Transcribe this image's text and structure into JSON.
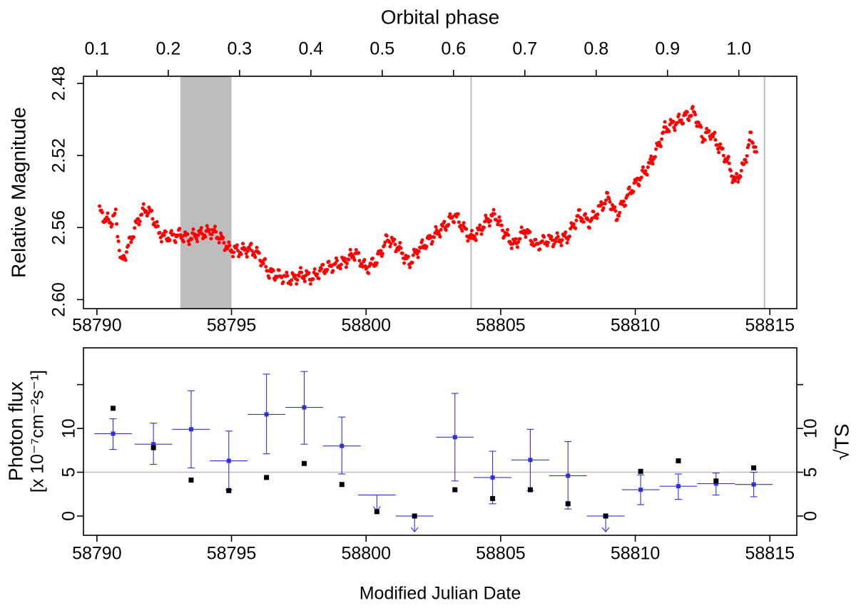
{
  "chart_data": [
    {
      "type": "scatter",
      "top_axis_label": "Orbital phase",
      "top_ticks": [
        "0.1",
        "0.2",
        "0.3",
        "0.4",
        "0.5",
        "0.6",
        "0.7",
        "0.8",
        "0.9",
        "1.0"
      ],
      "ylabel": "Relative Magnitude",
      "y_ticks": [
        "2.48",
        "2.52",
        "2.56",
        "2.60"
      ],
      "ylim": [
        2.476,
        2.605
      ],
      "y_inverted": true,
      "x_ticks": [
        "58790",
        "58795",
        "58800",
        "58805",
        "58810",
        "58815"
      ],
      "xlim": [
        58789.5,
        58816.0
      ],
      "phase_at_58790": 0.1,
      "phase_period_days": 26.496,
      "point_color": "#ff0000",
      "shaded_band": {
        "x0": 58793.1,
        "x1": 58795.0,
        "color": "#bdbdbd"
      },
      "vertical_lines": [
        58803.9,
        58814.8
      ],
      "vertical_line_color": "#bdbdbd",
      "light_curve_points": [
        {
          "x": 58790.1,
          "y": 2.551
        },
        {
          "x": 58790.3,
          "y": 2.555
        },
        {
          "x": 58790.5,
          "y": 2.557
        },
        {
          "x": 58790.7,
          "y": 2.553
        },
        {
          "x": 58790.9,
          "y": 2.58
        },
        {
          "x": 58791.1,
          "y": 2.573
        },
        {
          "x": 58791.3,
          "y": 2.565
        },
        {
          "x": 58791.5,
          "y": 2.557
        },
        {
          "x": 58791.7,
          "y": 2.551
        },
        {
          "x": 58791.9,
          "y": 2.55
        },
        {
          "x": 58792.1,
          "y": 2.555
        },
        {
          "x": 58792.3,
          "y": 2.563
        },
        {
          "x": 58792.5,
          "y": 2.565
        },
        {
          "x": 58792.8,
          "y": 2.565
        },
        {
          "x": 58793.1,
          "y": 2.564
        },
        {
          "x": 58793.4,
          "y": 2.566
        },
        {
          "x": 58793.7,
          "y": 2.564
        },
        {
          "x": 58794.0,
          "y": 2.563
        },
        {
          "x": 58794.3,
          "y": 2.562
        },
        {
          "x": 58794.6,
          "y": 2.566
        },
        {
          "x": 58794.9,
          "y": 2.572
        },
        {
          "x": 58795.3,
          "y": 2.573
        },
        {
          "x": 58795.7,
          "y": 2.572
        },
        {
          "x": 58796.0,
          "y": 2.575
        },
        {
          "x": 58796.4,
          "y": 2.585
        },
        {
          "x": 58796.8,
          "y": 2.587
        },
        {
          "x": 58797.2,
          "y": 2.589
        },
        {
          "x": 58797.6,
          "y": 2.586
        },
        {
          "x": 58798.0,
          "y": 2.588
        },
        {
          "x": 58798.4,
          "y": 2.583
        },
        {
          "x": 58798.8,
          "y": 2.581
        },
        {
          "x": 58799.2,
          "y": 2.579
        },
        {
          "x": 58799.6,
          "y": 2.574
        },
        {
          "x": 58800.0,
          "y": 2.583
        },
        {
          "x": 58800.4,
          "y": 2.578
        },
        {
          "x": 58800.8,
          "y": 2.566
        },
        {
          "x": 58801.2,
          "y": 2.571
        },
        {
          "x": 58801.6,
          "y": 2.58
        },
        {
          "x": 58801.9,
          "y": 2.573
        },
        {
          "x": 58803.0,
          "y": 2.558
        },
        {
          "x": 58803.3,
          "y": 2.553
        },
        {
          "x": 58803.6,
          "y": 2.56
        },
        {
          "x": 58803.9,
          "y": 2.566
        },
        {
          "x": 58804.2,
          "y": 2.562
        },
        {
          "x": 58804.5,
          "y": 2.556
        },
        {
          "x": 58804.8,
          "y": 2.553
        },
        {
          "x": 58805.1,
          "y": 2.562
        },
        {
          "x": 58805.5,
          "y": 2.57
        },
        {
          "x": 58805.9,
          "y": 2.561
        },
        {
          "x": 58806.3,
          "y": 2.57
        },
        {
          "x": 58806.7,
          "y": 2.567
        },
        {
          "x": 58807.1,
          "y": 2.567
        },
        {
          "x": 58807.5,
          "y": 2.565
        },
        {
          "x": 58807.9,
          "y": 2.553
        },
        {
          "x": 58808.3,
          "y": 2.557
        },
        {
          "x": 58808.7,
          "y": 2.549
        },
        {
          "x": 58809.0,
          "y": 2.543
        },
        {
          "x": 58809.3,
          "y": 2.554
        },
        {
          "x": 58809.6,
          "y": 2.545
        },
        {
          "x": 58809.9,
          "y": 2.538
        },
        {
          "x": 58810.2,
          "y": 2.532
        },
        {
          "x": 58810.5,
          "y": 2.526
        },
        {
          "x": 58810.8,
          "y": 2.517
        },
        {
          "x": 58811.1,
          "y": 2.505
        },
        {
          "x": 58811.5,
          "y": 2.502
        },
        {
          "x": 58811.9,
          "y": 2.498
        },
        {
          "x": 58812.2,
          "y": 2.496
        },
        {
          "x": 58812.5,
          "y": 2.51
        },
        {
          "x": 58812.8,
          "y": 2.507
        },
        {
          "x": 58813.1,
          "y": 2.515
        },
        {
          "x": 58813.4,
          "y": 2.522
        },
        {
          "x": 58813.7,
          "y": 2.535
        },
        {
          "x": 58814.0,
          "y": 2.527
        },
        {
          "x": 58814.3,
          "y": 2.509
        },
        {
          "x": 58814.5,
          "y": 2.518
        }
      ]
    },
    {
      "type": "scatter",
      "xlabel": "Modified Julian Date",
      "ylabel_line1": "Photon flux",
      "ylabel_line2": "[x 10⁻⁷cm⁻²s⁻¹]",
      "right_ylabel": "√TS",
      "y_ticks": [
        "0",
        "5",
        "10"
      ],
      "right_ticks": [
        "0",
        "5",
        "10"
      ],
      "ylim": [
        -2.2,
        19.2
      ],
      "x_ticks": [
        "58790",
        "58795",
        "58800",
        "58805",
        "58810",
        "58815"
      ],
      "xlim": [
        58789.5,
        58816.0
      ],
      "reference_line_y": 5,
      "flux_color": "#3030e0",
      "ts_color": "#000000",
      "flux_series": [
        {
          "x": 58790.6,
          "y": 9.4,
          "xerr": 0.7,
          "ylo": 7.6,
          "yhi": 11.1
        },
        {
          "x": 58792.1,
          "y": 8.2,
          "xerr": 0.7,
          "ylo": 5.9,
          "yhi": 10.6
        },
        {
          "x": 58793.5,
          "y": 9.9,
          "xerr": 0.7,
          "ylo": 5.5,
          "yhi": 14.3
        },
        {
          "x": 58794.9,
          "y": 6.3,
          "xerr": 0.7,
          "ylo": 3.0,
          "yhi": 9.7
        },
        {
          "x": 58796.3,
          "y": 11.6,
          "xerr": 0.7,
          "ylo": 7.1,
          "yhi": 16.2
        },
        {
          "x": 58797.7,
          "y": 12.4,
          "xerr": 0.7,
          "ylo": 8.2,
          "yhi": 16.5
        },
        {
          "x": 58799.1,
          "y": 8.0,
          "xerr": 0.7,
          "ylo": 4.8,
          "yhi": 11.3
        },
        {
          "x": 58800.4,
          "y": 2.4,
          "xerr": 0.7,
          "upper_limit": true
        },
        {
          "x": 58801.8,
          "y": 0.0,
          "xerr": 0.7,
          "upper_limit": true
        },
        {
          "x": 58803.3,
          "y": 9.0,
          "xerr": 0.7,
          "ylo": 4.0,
          "yhi": 14.0
        },
        {
          "x": 58804.7,
          "y": 4.4,
          "xerr": 0.7,
          "ylo": 1.4,
          "yhi": 7.4
        },
        {
          "x": 58806.1,
          "y": 6.4,
          "xerr": 0.7,
          "ylo": 2.9,
          "yhi": 9.9
        },
        {
          "x": 58807.5,
          "y": 4.6,
          "xerr": 0.7,
          "ylo": 0.8,
          "yhi": 8.5
        },
        {
          "x": 58808.9,
          "y": 0.0,
          "xerr": 0.7,
          "upper_limit": true
        },
        {
          "x": 58810.2,
          "y": 3.0,
          "xerr": 0.7,
          "ylo": 1.3,
          "yhi": 4.7
        },
        {
          "x": 58811.6,
          "y": 3.4,
          "xerr": 0.7,
          "ylo": 1.9,
          "yhi": 4.8
        },
        {
          "x": 58813.0,
          "y": 3.7,
          "xerr": 0.7,
          "ylo": 2.4,
          "yhi": 4.9
        },
        {
          "x": 58814.4,
          "y": 3.6,
          "xerr": 0.7,
          "ylo": 2.2,
          "yhi": 5.0
        }
      ],
      "ts_series": [
        {
          "x": 58790.6,
          "y": 12.3
        },
        {
          "x": 58792.1,
          "y": 7.8
        },
        {
          "x": 58793.5,
          "y": 4.1
        },
        {
          "x": 58794.9,
          "y": 2.9
        },
        {
          "x": 58796.3,
          "y": 4.4
        },
        {
          "x": 58797.7,
          "y": 6.0
        },
        {
          "x": 58799.1,
          "y": 3.6
        },
        {
          "x": 58800.4,
          "y": 0.5
        },
        {
          "x": 58801.8,
          "y": 0.0
        },
        {
          "x": 58803.3,
          "y": 3.0
        },
        {
          "x": 58804.7,
          "y": 2.0
        },
        {
          "x": 58806.1,
          "y": 3.0
        },
        {
          "x": 58807.5,
          "y": 1.4
        },
        {
          "x": 58808.9,
          "y": 0.0
        },
        {
          "x": 58810.2,
          "y": 5.1
        },
        {
          "x": 58811.6,
          "y": 6.3
        },
        {
          "x": 58813.0,
          "y": 4.0
        },
        {
          "x": 58814.4,
          "y": 5.5
        }
      ]
    }
  ]
}
